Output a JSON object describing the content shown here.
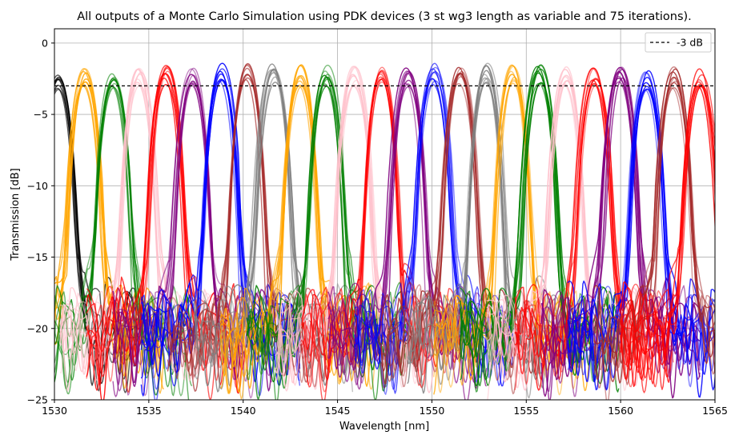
{
  "chart_data": {
    "type": "line",
    "title": "All outputs of a Monte Carlo Simulation using PDK devices (3 st wg3 length as variable and 75 iterations).",
    "xlabel": "Wavelength [nm]",
    "ylabel": "Transmission [dB]",
    "xlim": [
      1530,
      1565
    ],
    "ylim": [
      -25,
      1
    ],
    "xticks": [
      1530,
      1535,
      1540,
      1545,
      1550,
      1555,
      1560,
      1565
    ],
    "xtick_labels": [
      "1530",
      "1535",
      "1540",
      "1545",
      "1550",
      "1555",
      "1560",
      "1565"
    ],
    "yticks": [
      0,
      -5,
      -10,
      -15,
      -20,
      -25
    ],
    "ytick_labels": [
      "0",
      "−5",
      "−10",
      "−15",
      "−20",
      "−25"
    ],
    "grid": true,
    "legend": {
      "placement": "top-right",
      "entries": [
        {
          "label": "-3 dB",
          "style": "dashed",
          "color": "#000000"
        }
      ]
    },
    "reference_line": {
      "y": -3,
      "label": "-3 dB",
      "color": "#000000",
      "style": "dashed"
    },
    "channel_peak_wavelengths": [
      1530.2,
      1531.6,
      1533.1,
      1534.5,
      1535.9,
      1537.3,
      1538.8,
      1540.2,
      1541.6,
      1543.0,
      1544.4,
      1545.9,
      1547.3,
      1548.7,
      1550.1,
      1551.5,
      1552.9,
      1554.3,
      1555.7,
      1557.1,
      1558.6,
      1560.0,
      1561.4,
      1562.8,
      1564.2
    ],
    "channel_peak_db": [
      -1.9,
      -1.6,
      -1.6,
      -1.4,
      -1.5,
      -1.4,
      -1.4,
      -1.4,
      -1.4,
      -1.5,
      -1.5,
      -1.5,
      -1.4,
      -1.5,
      -1.4,
      -1.5,
      -1.4,
      -1.4,
      -1.5,
      -1.6,
      -1.6,
      -1.6,
      -1.7,
      -1.6,
      -1.6
    ],
    "channel_colors": [
      "#000000",
      "#ffa500",
      "#008000",
      "#ffc0cb",
      "#ff0000",
      "#800080",
      "#0000ff",
      "#a52a2a",
      "#808080",
      "#ffa500",
      "#008000",
      "#ffc0cb",
      "#ff0000",
      "#800080",
      "#0000ff",
      "#a52a2a",
      "#808080",
      "#ffa500",
      "#008000",
      "#ffc0cb",
      "#ff0000",
      "#800080",
      "#0000ff",
      "#a52a2a",
      "#ff0000"
    ],
    "series": [
      {
        "color": "#000000"
      },
      {
        "color": "#ffa500"
      },
      {
        "color": "#008000"
      },
      {
        "color": "#ffc0cb"
      },
      {
        "color": "#ff0000"
      },
      {
        "color": "#800080"
      },
      {
        "color": "#0000ff"
      },
      {
        "color": "#a52a2a"
      },
      {
        "color": "#808080"
      },
      {
        "color": "#ffa500"
      },
      {
        "color": "#008000"
      },
      {
        "color": "#ffc0cb"
      },
      {
        "color": "#ff0000"
      },
      {
        "color": "#800080"
      },
      {
        "color": "#0000ff"
      },
      {
        "color": "#a52a2a"
      },
      {
        "color": "#808080"
      },
      {
        "color": "#ffa500"
      },
      {
        "color": "#008000"
      },
      {
        "color": "#ffc0cb"
      },
      {
        "color": "#ff0000"
      },
      {
        "color": "#800080"
      },
      {
        "color": "#0000ff"
      },
      {
        "color": "#a52a2a"
      },
      {
        "color": "#ff0000"
      }
    ],
    "iterations": 75
  }
}
